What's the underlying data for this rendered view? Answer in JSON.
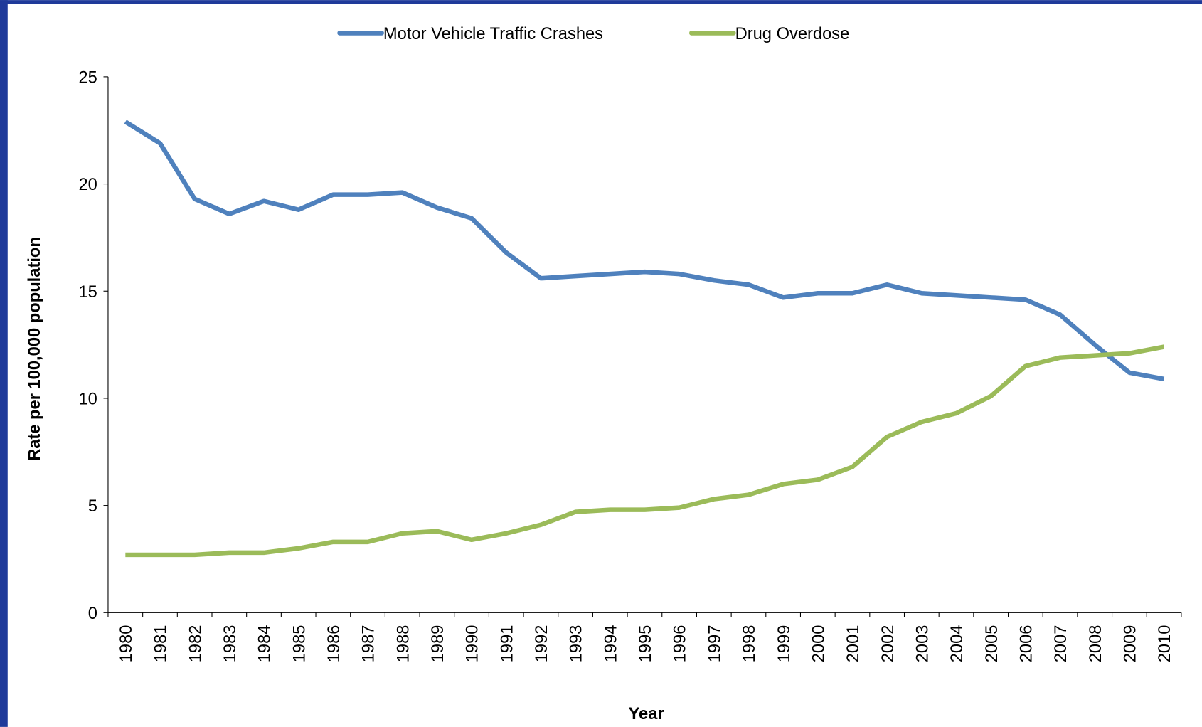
{
  "chart_data": {
    "type": "line",
    "xlabel": "Year",
    "ylabel": "Rate per 100,000 population",
    "categories": [
      "1980",
      "1981",
      "1982",
      "1983",
      "1984",
      "1985",
      "1986",
      "1987",
      "1988",
      "1989",
      "1990",
      "1991",
      "1992",
      "1993",
      "1994",
      "1995",
      "1996",
      "1997",
      "1998",
      "1999",
      "2000",
      "2001",
      "2002",
      "2003",
      "2004",
      "2005",
      "2006",
      "2007",
      "2008",
      "2009",
      "2010"
    ],
    "series": [
      {
        "name": "Motor Vehicle Traffic Crashes",
        "color": "#4f81bd",
        "values": [
          22.9,
          21.9,
          19.3,
          18.6,
          19.2,
          18.8,
          19.5,
          19.5,
          19.6,
          18.9,
          18.4,
          16.8,
          15.6,
          15.7,
          15.8,
          15.9,
          15.8,
          15.5,
          15.3,
          14.7,
          14.9,
          14.9,
          15.3,
          14.9,
          14.8,
          14.7,
          14.6,
          13.9,
          12.5,
          11.2,
          10.9
        ]
      },
      {
        "name": "Drug Overdose",
        "color": "#9bbb59",
        "values": [
          2.7,
          2.7,
          2.7,
          2.8,
          2.8,
          3.0,
          3.3,
          3.3,
          3.7,
          3.8,
          3.4,
          3.7,
          4.1,
          4.7,
          4.8,
          4.8,
          4.9,
          5.3,
          5.5,
          6.0,
          6.2,
          6.8,
          8.2,
          8.9,
          9.3,
          10.1,
          11.5,
          11.9,
          12.0,
          12.1,
          12.4
        ]
      }
    ],
    "ylim": [
      0,
      25
    ],
    "yticks": [
      0,
      5,
      10,
      15,
      20,
      25
    ],
    "legend": "top"
  }
}
